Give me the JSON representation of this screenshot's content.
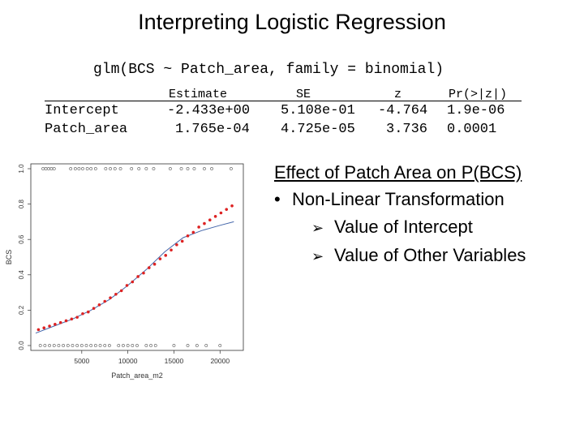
{
  "slide": {
    "title": "Interpreting Logistic Regression",
    "formula": "glm(BCS ~ Patch_area, family = binomial)"
  },
  "coef_table": {
    "headers": [
      "Estimate",
      "SE",
      "z",
      "Pr(>|z|)"
    ],
    "rows": [
      {
        "name": "Intercept",
        "estimate": "-2.433e+00",
        "se": "5.108e-01",
        "z": "-4.764",
        "p": "1.9e-06"
      },
      {
        "name": "Patch_area",
        "estimate": "1.765e-04",
        "se": "4.725e-05",
        "z": "3.736",
        "p": "0.0001"
      }
    ]
  },
  "bullets": {
    "heading": "Effect of Patch Area on P(BCS)",
    "main": "Non-Linear Transformation",
    "sub": [
      "Value of Intercept",
      "Value of Other Variables"
    ],
    "arrow_icon": "arrow-bullet-icon",
    "dot_icon": "dot-bullet-icon"
  },
  "chart_data": {
    "type": "scatter",
    "xlabel": "Patch_area_m2",
    "ylabel": "BCS",
    "xlim": [
      0,
      22000
    ],
    "ylim": [
      0,
      1
    ],
    "x_ticks": [
      5000,
      10000,
      15000,
      20000
    ],
    "y_ticks": [
      0.0,
      0.2,
      0.4,
      0.6,
      0.8,
      1.0
    ],
    "y_tick_labels": [
      "0.0",
      "0.2",
      "0.4",
      "0.6",
      "0.8",
      "1.0"
    ],
    "series": [
      {
        "kind": "observed",
        "color": "#555555",
        "x_bcs1": [
          800,
          1100,
          1400,
          1700,
          2000,
          3800,
          4300,
          4700,
          5100,
          5600,
          6000,
          6500,
          7600,
          8100,
          8600,
          9200,
          10400,
          11200,
          12000,
          12800,
          14600,
          15800,
          16500,
          17200,
          18300,
          19100,
          21200
        ],
        "x_bcs0": [
          500,
          1000,
          1500,
          2000,
          2500,
          3000,
          3500,
          4000,
          4500,
          5000,
          5500,
          6000,
          6500,
          7000,
          7500,
          8000,
          9000,
          9500,
          10000,
          10500,
          11000,
          12000,
          12500,
          13000,
          15000,
          16500,
          17500,
          18500,
          20000
        ]
      },
      {
        "kind": "fitted-red",
        "color": "#dd2222",
        "x": [
          300,
          900,
          1500,
          2100,
          2700,
          3300,
          3900,
          4500,
          5100,
          5700,
          6300,
          6900,
          7500,
          8100,
          8700,
          9300,
          9900,
          10500,
          11100,
          11700,
          12300,
          12900,
          13500,
          14100,
          14700,
          15300,
          15900,
          16500,
          17100,
          17700,
          18300,
          18900,
          19500,
          20100,
          20700,
          21300
        ],
        "y": [
          0.09,
          0.1,
          0.11,
          0.12,
          0.13,
          0.14,
          0.15,
          0.16,
          0.18,
          0.19,
          0.21,
          0.23,
          0.25,
          0.27,
          0.29,
          0.31,
          0.34,
          0.36,
          0.39,
          0.41,
          0.44,
          0.46,
          0.49,
          0.51,
          0.54,
          0.57,
          0.59,
          0.62,
          0.64,
          0.67,
          0.69,
          0.71,
          0.73,
          0.75,
          0.77,
          0.79
        ]
      },
      {
        "kind": "fitted-blue",
        "color": "#4466aa",
        "x": [
          0,
          2000,
          4000,
          6000,
          8000,
          10000,
          12000,
          14000,
          16000,
          18000,
          20000,
          21500
        ],
        "y": [
          0.07,
          0.11,
          0.15,
          0.2,
          0.26,
          0.34,
          0.43,
          0.53,
          0.61,
          0.65,
          0.68,
          0.7
        ]
      }
    ]
  }
}
